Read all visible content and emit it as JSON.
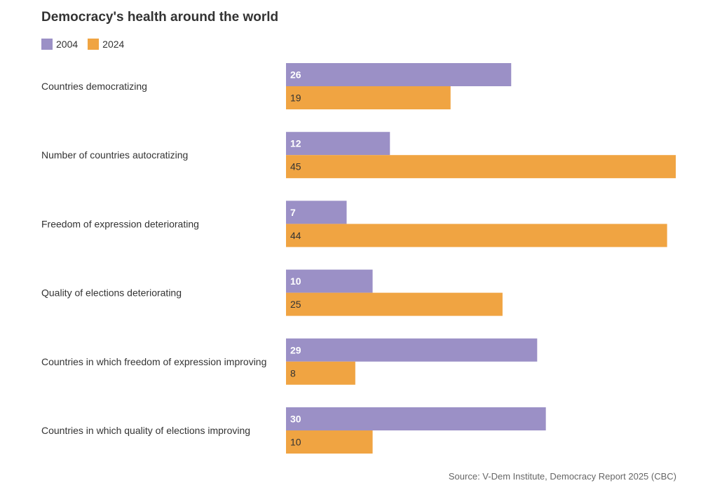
{
  "chart_data": {
    "type": "bar",
    "orientation": "horizontal",
    "title": "Democracy's health around the world",
    "categories": [
      "Countries democratizing",
      "Number of countries autocratizing",
      "Freedom of expression deteriorating",
      "Quality of elections deteriorating",
      "Countries in which freedom of expression improving",
      "Countries in which quality of elections improving"
    ],
    "series": [
      {
        "name": "2004",
        "values": [
          26,
          12,
          7,
          10,
          29,
          30
        ],
        "color": "#9b90c6",
        "label_color": "#ffffff"
      },
      {
        "name": "2024",
        "values": [
          19,
          45,
          44,
          25,
          8,
          10
        ],
        "color": "#f0a442",
        "label_color": "#333333"
      }
    ],
    "xlim": [
      0,
      45
    ],
    "grid": false,
    "legend_position": "top-left",
    "xlabel": "",
    "ylabel": ""
  },
  "source": "Source: V-Dem Institute, Democracy Report 2025 (CBC)"
}
